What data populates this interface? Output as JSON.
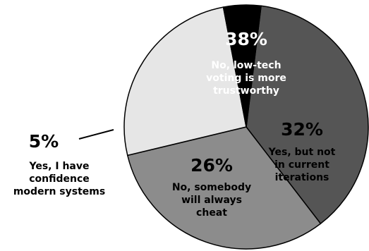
{
  "chart_data": {
    "type": "pie",
    "slices": [
      {
        "label": "No, low-tech voting is more trustworthy",
        "value": 38,
        "value_label": "38%",
        "lines": [
          "No, low-tech",
          "voting is more",
          "trustworthy"
        ],
        "color": "#555555",
        "text_color": "#ffffff"
      },
      {
        "label": "Yes, but not in current iterations",
        "value": 32,
        "value_label": "32%",
        "lines": [
          "Yes, but not",
          "in current",
          "iterations"
        ],
        "color": "#8c8c8c",
        "text_color": "#000000"
      },
      {
        "label": "No, somebody will always cheat",
        "value": 26,
        "value_label": "26%",
        "lines": [
          "No, somebody",
          "will always",
          "cheat"
        ],
        "color": "#e6e6e6",
        "text_color": "#000000"
      },
      {
        "label": "Yes, I have confidence modern systems",
        "value": 5,
        "value_label": "5%",
        "lines": [
          "Yes, I have",
          "confidence",
          "modern systems"
        ],
        "color": "#000000",
        "text_color": "#000000"
      }
    ]
  }
}
